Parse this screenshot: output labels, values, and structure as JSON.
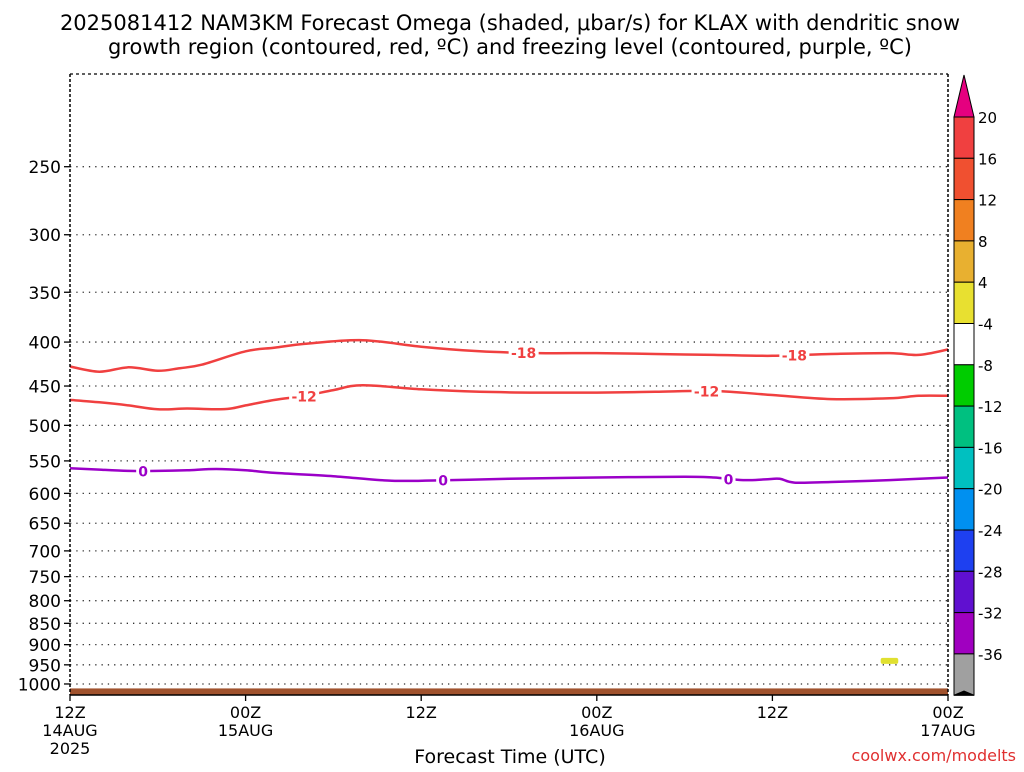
{
  "chart_data": {
    "type": "line",
    "title_line1": "2025081412 NAM3KM Forecast Omega (shaded, μbar/s) for KLAX with dendritic snow",
    "title_line2": "growth region (contoured, red, ºC) and freezing level (contoured, purple, ºC)",
    "xlabel": "Forecast Time (UTC)",
    "ylabel": "",
    "credit": "coolwx.com/modelts",
    "x_range_hours": [
      0,
      60
    ],
    "y_range_hpa": [
      1030,
      195
    ],
    "y_scale": "log-pressure",
    "grid": true,
    "x_ticks": [
      {
        "hour": 0,
        "line1": "12Z",
        "line2": "14AUG",
        "line3": "2025"
      },
      {
        "hour": 12,
        "line1": "00Z",
        "line2": "15AUG",
        "line3": ""
      },
      {
        "hour": 24,
        "line1": "12Z",
        "line2": "",
        "line3": ""
      },
      {
        "hour": 36,
        "line1": "00Z",
        "line2": "16AUG",
        "line3": ""
      },
      {
        "hour": 48,
        "line1": "12Z",
        "line2": "",
        "line3": ""
      },
      {
        "hour": 60,
        "line1": "00Z",
        "line2": "17AUG",
        "line3": ""
      }
    ],
    "y_ticks": [
      "250",
      "300",
      "350",
      "400",
      "450",
      "500",
      "550",
      "600",
      "650",
      "700",
      "750",
      "800",
      "850",
      "900",
      "950",
      "1000"
    ],
    "series": [
      {
        "name": "-18",
        "color": "#f04040",
        "width": 2.5,
        "label_hours": [
          31,
          49.5
        ],
        "points": [
          [
            0,
            427
          ],
          [
            2,
            433
          ],
          [
            4,
            428
          ],
          [
            6,
            432
          ],
          [
            7.5,
            429
          ],
          [
            9,
            425
          ],
          [
            12,
            410
          ],
          [
            14,
            406
          ],
          [
            16,
            402
          ],
          [
            20,
            398
          ],
          [
            24,
            405
          ],
          [
            28,
            410
          ],
          [
            32,
            412
          ],
          [
            36,
            412
          ],
          [
            40,
            413
          ],
          [
            44,
            414
          ],
          [
            48,
            415
          ],
          [
            52,
            413
          ],
          [
            56,
            412
          ],
          [
            58,
            414
          ],
          [
            60,
            408
          ]
        ]
      },
      {
        "name": "-12",
        "color": "#f04040",
        "width": 2.5,
        "label_hours": [
          16,
          43.5
        ],
        "points": [
          [
            0,
            467
          ],
          [
            2,
            470
          ],
          [
            4,
            474
          ],
          [
            6,
            479
          ],
          [
            8,
            478
          ],
          [
            10,
            479
          ],
          [
            11,
            478
          ],
          [
            12,
            474
          ],
          [
            14,
            467
          ],
          [
            16,
            462
          ],
          [
            18,
            455
          ],
          [
            20,
            449
          ],
          [
            24,
            454
          ],
          [
            28,
            457
          ],
          [
            32,
            458
          ],
          [
            36,
            458
          ],
          [
            40,
            457
          ],
          [
            44,
            456
          ],
          [
            48,
            461
          ],
          [
            52,
            466
          ],
          [
            56,
            465
          ],
          [
            58,
            462
          ],
          [
            60,
            462
          ]
        ]
      },
      {
        "name": "0",
        "color": "#9b00c8",
        "width": 2.5,
        "label_hours": [
          5,
          25.5,
          45
        ],
        "points": [
          [
            0,
            561
          ],
          [
            2,
            563
          ],
          [
            4,
            565
          ],
          [
            6,
            565
          ],
          [
            8,
            564
          ],
          [
            10,
            562
          ],
          [
            12,
            564
          ],
          [
            14,
            568
          ],
          [
            18,
            573
          ],
          [
            22,
            580
          ],
          [
            26,
            579
          ],
          [
            30,
            577
          ],
          [
            36,
            575
          ],
          [
            42,
            574
          ],
          [
            44,
            575
          ],
          [
            46,
            579
          ],
          [
            47.5,
            578
          ],
          [
            48.5,
            577
          ],
          [
            49.5,
            583
          ],
          [
            52,
            582
          ],
          [
            56,
            579
          ],
          [
            60,
            575
          ]
        ]
      }
    ],
    "ground": {
      "top_hpa": 1012,
      "color": "#a0522d"
    },
    "blob": {
      "hour_start": 55.4,
      "hour_end": 56.6,
      "hpa": 940,
      "color": "#e0e030"
    },
    "colorbar": {
      "top_color": "#e5007f",
      "bottom_color": "#000000",
      "segments": [
        {
          "color": "#f04040",
          "label": "20"
        },
        {
          "color": "#f05030",
          "label": "16"
        },
        {
          "color": "#f08020",
          "label": "12"
        },
        {
          "color": "#e8b030",
          "label": "8"
        },
        {
          "color": "#e8e030",
          "label": "4"
        },
        {
          "color": "#ffffff",
          "label": "-4"
        },
        {
          "color": "#00cc00",
          "label": "-8"
        },
        {
          "color": "#00c080",
          "label": "-12"
        },
        {
          "color": "#00c0c0",
          "label": "-16"
        },
        {
          "color": "#0090f0",
          "label": "-20"
        },
        {
          "color": "#1e40f0",
          "label": "-24"
        },
        {
          "color": "#6010d0",
          "label": "-28"
        },
        {
          "color": "#a000c0",
          "label": "-32"
        },
        {
          "color": "#a0a0a0",
          "label": "-36"
        }
      ]
    }
  }
}
